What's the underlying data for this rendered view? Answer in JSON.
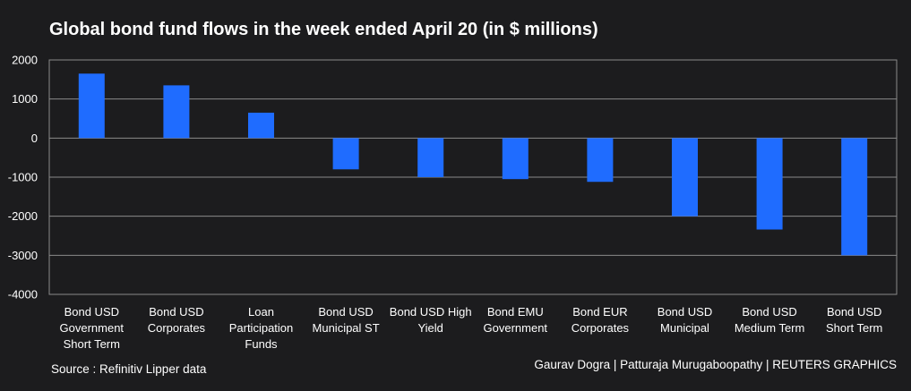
{
  "title": "Global bond fund flows in the week ended April 20 (in $ millions)",
  "source": "Source : Refinitiv Lipper data",
  "credit": "Gaurav Dogra | Patturaja Murugaboopathy | REUTERS GRAPHICS",
  "colors": {
    "background": "#1c1c1e",
    "bar": "#1f6cff",
    "grid": "#8a8a8a",
    "text": "#ffffff"
  },
  "chart_data": {
    "type": "bar",
    "title": "Global bond fund flows in the week ended April 20 (in $ millions)",
    "xlabel": "",
    "ylabel": "",
    "ylim": [
      -4000,
      2000
    ],
    "yticks": [
      2000,
      1000,
      0,
      -1000,
      -2000,
      -3000,
      -4000
    ],
    "grid": true,
    "categories": [
      [
        "Bond USD",
        "Government",
        "Short Term"
      ],
      [
        "Bond USD",
        "Corporates"
      ],
      [
        "Loan",
        "Participation",
        "Funds"
      ],
      [
        "Bond USD",
        "Municipal ST"
      ],
      [
        "Bond USD High",
        "Yield"
      ],
      [
        "Bond EMU",
        "Government"
      ],
      [
        "Bond EUR",
        "Corporates"
      ],
      [
        "Bond USD",
        "Municipal"
      ],
      [
        "Bond USD",
        "Medium Term"
      ],
      [
        "Bond USD",
        "Short Term"
      ]
    ],
    "values": [
      1650,
      1350,
      650,
      -800,
      -1000,
      -1050,
      -1120,
      -2000,
      -2340,
      -3000
    ]
  }
}
